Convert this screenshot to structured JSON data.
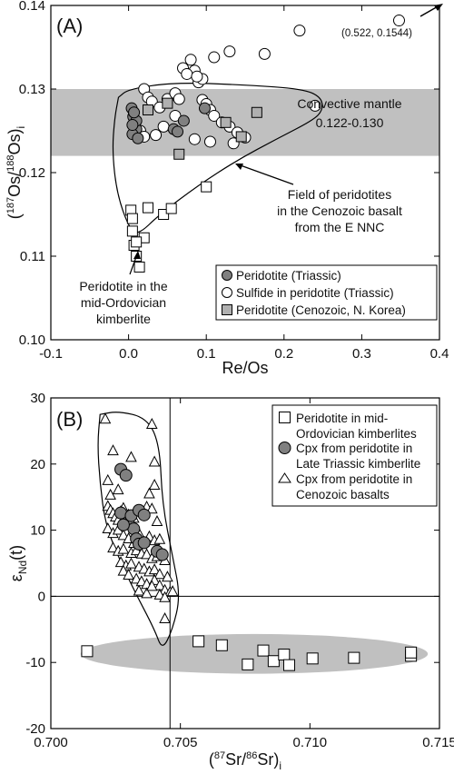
{
  "chart_data": [
    {
      "type": "scatter",
      "panel_label": "(A)",
      "xlabel": "Re/Os",
      "ylabel": "(187Os/188Os)i",
      "xlim": [
        -0.1,
        0.4
      ],
      "ylim": [
        0.1,
        0.14
      ],
      "xticks": [
        "-0.1",
        "0.0",
        "0.1",
        "0.2",
        "0.3",
        "0.4"
      ],
      "yticks": [
        "0.10",
        "0.11",
        "0.12",
        "0.13",
        "0.14"
      ],
      "band": {
        "label": "Convective mantle",
        "range_label": "0.122-0.130",
        "ymin": 0.122,
        "ymax": 0.13,
        "color": "#c0c0c0"
      },
      "outlier_label": "(0.522, 0.1544)",
      "annotations": {
        "field": [
          "Field of peridotites",
          "in the Cenozoic basalt",
          "from the E NNC"
        ],
        "kimberlite": [
          "Peridotite in the",
          "mid-Ordovician",
          "kimberlite"
        ]
      },
      "series": [
        {
          "name": "Peridotite (Triassic)",
          "marker": "circle",
          "fill": "#808080",
          "x": [
            0.004,
            0.006,
            0.008,
            0.01,
            0.005,
            0.012,
            0.01,
            0.007,
            0.058,
            0.063,
            0.071,
            0.098,
            0.005
          ],
          "y": [
            0.1277,
            0.1267,
            0.1257,
            0.1252,
            0.1246,
            0.1241,
            0.1262,
            0.1272,
            0.1252,
            0.1249,
            0.1262,
            0.1277,
            0.1257
          ]
        },
        {
          "name": "Sulfide in peridotite (Triassic)",
          "marker": "circle",
          "fill": "#ffffff",
          "x": [
            0.07,
            0.08,
            0.085,
            0.075,
            0.09,
            0.095,
            0.088,
            0.11,
            0.13,
            0.175,
            0.22,
            0.24,
            0.02,
            0.025,
            0.03,
            0.04,
            0.05,
            0.06,
            0.065,
            0.095,
            0.1,
            0.105,
            0.11,
            0.12,
            0.13,
            0.14,
            0.15,
            0.135,
            0.015,
            0.02,
            0.035,
            0.045,
            0.085,
            0.105,
            0.06
          ],
          "y": [
            0.1325,
            0.1335,
            0.1322,
            0.1318,
            0.1308,
            0.1312,
            0.1315,
            0.1338,
            0.1345,
            0.1342,
            0.137,
            0.128,
            0.13,
            0.129,
            0.1285,
            0.1278,
            0.1288,
            0.1295,
            0.1288,
            0.1287,
            0.1282,
            0.1275,
            0.1268,
            0.126,
            0.1255,
            0.1248,
            0.1242,
            0.1235,
            0.125,
            0.1243,
            0.1245,
            0.1255,
            0.124,
            0.1237,
            0.1268
          ]
        },
        {
          "name": "Peridotite (Cenozoic, N. Korea)",
          "marker": "square",
          "fill": "#b0b0b0",
          "x": [
            0.025,
            0.125,
            0.145,
            0.165,
            0.065,
            0.05
          ],
          "y": [
            0.1275,
            0.126,
            0.1243,
            0.1272,
            0.1222,
            0.1283
          ]
        },
        {
          "name": "Peridotite in the mid-Ordovician kimberlite",
          "marker": "square",
          "fill": "#ffffff",
          "in_legend": false,
          "x": [
            0.003,
            0.005,
            0.007,
            0.01,
            0.014,
            0.02,
            0.025,
            0.045,
            0.055,
            0.1,
            0.005,
            0.01
          ],
          "y": [
            0.1155,
            0.113,
            0.1113,
            0.11,
            0.1087,
            0.1122,
            0.1158,
            0.115,
            0.1157,
            0.1183,
            0.1145,
            0.1117
          ]
        },
        {
          "name": "outlier",
          "marker": "circle",
          "fill": "#ffffff",
          "in_legend": false,
          "x": [
            0.348
          ],
          "y": [
            0.1382
          ]
        }
      ]
    },
    {
      "type": "scatter",
      "panel_label": "(B)",
      "xlabel": "(87Sr/86Sr)i",
      "ylabel": "εNd(t)",
      "xlim": [
        0.7,
        0.715
      ],
      "ylim": [
        -20,
        30
      ],
      "xticks": [
        "0.700",
        "0.705",
        "0.710",
        "0.715"
      ],
      "yticks": [
        "-20",
        "-10",
        "0",
        "10",
        "20",
        "30"
      ],
      "reference_lines": {
        "x": 0.7046,
        "y": 0
      },
      "series": [
        {
          "name": "Peridotite in mid-Ordovician kimberlites",
          "marker": "square",
          "fill": "#ffffff",
          "x": [
            0.7014,
            0.7057,
            0.7066,
            0.7076,
            0.7082,
            0.7086,
            0.709,
            0.7092,
            0.7101,
            0.7117,
            0.7139,
            0.7139
          ],
          "y": [
            -8.3,
            -6.8,
            -7.4,
            -10.3,
            -8.2,
            -9.8,
            -8.8,
            -10.4,
            -9.4,
            -9.3,
            -9.0,
            -8.5
          ]
        },
        {
          "name": "Cpx from peridotite in Late Triassic kimberlite",
          "marker": "circle",
          "fill": "#808080",
          "x": [
            0.7027,
            0.7029,
            0.7027,
            0.703,
            0.7032,
            0.7028,
            0.7031,
            0.7034,
            0.7036,
            0.7033,
            0.7034,
            0.7036,
            0.7041,
            0.7043
          ],
          "y": [
            19.2,
            18.3,
            12.6,
            11.0,
            10.2,
            10.8,
            12.2,
            13.0,
            12.3,
            8.7,
            7.9,
            8.1,
            6.8,
            6.3
          ]
        },
        {
          "name": "Cpx from peridotite in Cenozoic basalts",
          "marker": "triangle",
          "fill": "#ffffff",
          "x": [
            0.7021,
            0.7039,
            0.7024,
            0.7031,
            0.704,
            0.7022,
            0.7023,
            0.7026,
            0.7038,
            0.704,
            0.7022,
            0.7023,
            0.7024,
            0.7025,
            0.7026,
            0.7027,
            0.7028,
            0.703,
            0.7032,
            0.7035,
            0.7037,
            0.7039,
            0.7041,
            0.7022,
            0.7024,
            0.7026,
            0.7028,
            0.703,
            0.7032,
            0.7034,
            0.7036,
            0.7038,
            0.704,
            0.7042,
            0.7024,
            0.7026,
            0.7028,
            0.7031,
            0.7033,
            0.7035,
            0.7037,
            0.7039,
            0.7041,
            0.7044,
            0.7027,
            0.7029,
            0.7031,
            0.7034,
            0.7036,
            0.7038,
            0.704,
            0.7042,
            0.7045,
            0.7028,
            0.703,
            0.7033,
            0.7035,
            0.7037,
            0.704,
            0.7042,
            0.7044,
            0.7046,
            0.7034,
            0.7037,
            0.7039,
            0.7042,
            0.7044,
            0.7047,
            0.7044
          ],
          "y": [
            26.8,
            26.0,
            22.0,
            21.0,
            20.3,
            17.5,
            15.3,
            16.1,
            15.5,
            16.8,
            13.6,
            13.0,
            12.5,
            12.0,
            11.5,
            12.8,
            13.3,
            12.3,
            11.8,
            12.9,
            13.5,
            13.2,
            11.3,
            10.2,
            9.5,
            10.0,
            9.2,
            8.7,
            8.0,
            9.5,
            8.2,
            9.0,
            8.4,
            8.6,
            7.3,
            6.8,
            7.1,
            6.5,
            6.9,
            6.4,
            6.3,
            5.7,
            6.0,
            5.4,
            5.1,
            4.6,
            4.9,
            4.4,
            4.1,
            3.7,
            4.0,
            3.3,
            2.9,
            3.8,
            3.2,
            2.6,
            2.2,
            1.8,
            2.4,
            1.6,
            0.9,
            0.6,
            0.8,
            0.4,
            1.5,
            0.2,
            -0.2,
            0.7,
            -3.4
          ]
        }
      ]
    }
  ]
}
